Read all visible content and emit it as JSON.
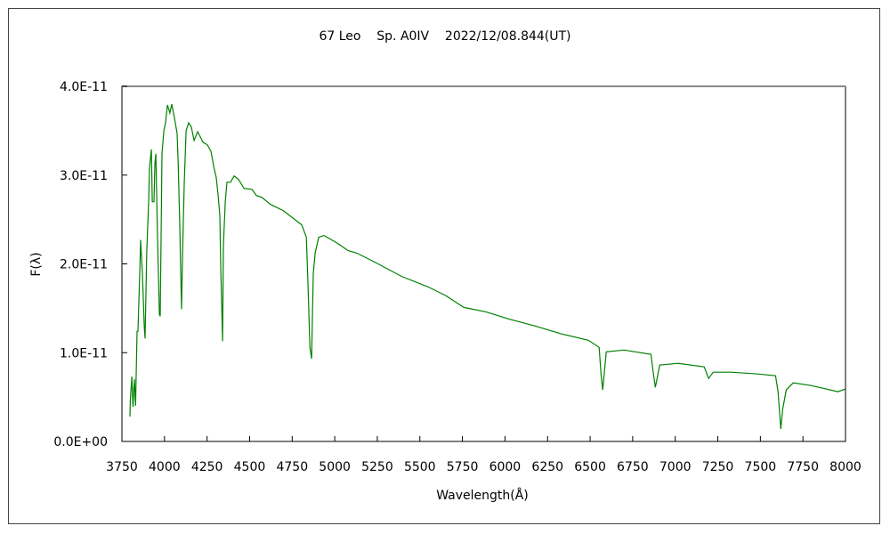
{
  "chart_data": {
    "type": "line",
    "title": "67 Leo    Sp. A0IV    2022/12/08.844(UT)",
    "xlabel": "Wavelength(Å)",
    "ylabel": "F(λ)",
    "xlim": [
      3750,
      8000
    ],
    "ylim": [
      0,
      4e-11
    ],
    "xticks": [
      "3750",
      "4000",
      "4250",
      "4500",
      "4750",
      "5000",
      "5250",
      "5500",
      "5750",
      "6000",
      "6250",
      "6500",
      "6750",
      "7000",
      "7250",
      "7500",
      "7750",
      "8000"
    ],
    "yticks": [
      "0.0E+00",
      "1.0E-11",
      "2.0E-11",
      "3.0E-11",
      "4.0E-11"
    ],
    "grid": false,
    "line_color": "#008000",
    "y_unit_scale": 1e-11,
    "series": [
      {
        "name": "67 Leo",
        "x": [
          3797,
          3799,
          3808,
          3815,
          3823,
          3830,
          3839,
          3844,
          3855,
          3860,
          3870,
          3881,
          3886,
          3896,
          3907,
          3912,
          3923,
          3928,
          3938,
          3944,
          3949,
          3959,
          3970,
          3975,
          3980,
          3985,
          3996,
          4006,
          4017,
          4032,
          4043,
          4059,
          4074,
          4080,
          4090,
          4095,
          4100,
          4106,
          4116,
          4127,
          4142,
          4158,
          4174,
          4195,
          4226,
          4252,
          4273,
          4289,
          4304,
          4315,
          4325,
          4331,
          4341,
          4346,
          4357,
          4367,
          4388,
          4409,
          4435,
          4467,
          4514,
          4540,
          4571,
          4623,
          4697,
          4765,
          4806,
          4833,
          4843,
          4854,
          4864,
          4874,
          4885,
          4906,
          4937,
          5010,
          5078,
          5131,
          5235,
          5392,
          5549,
          5654,
          5758,
          5889,
          6020,
          6177,
          6334,
          6490,
          6553,
          6564,
          6574,
          6595,
          6700,
          6857,
          6872,
          6883,
          6909,
          7014,
          7170,
          7196,
          7223,
          7327,
          7484,
          7589,
          7604,
          7620,
          7631,
          7652,
          7693,
          7798,
          7955,
          8000
        ],
        "y": [
          0.28,
          0.46,
          0.73,
          0.39,
          0.7,
          0.4,
          1.24,
          1.24,
          1.93,
          2.27,
          1.89,
          1.29,
          1.16,
          2.14,
          2.7,
          3.09,
          3.29,
          2.7,
          2.7,
          3.14,
          3.24,
          2.3,
          1.43,
          1.41,
          2.3,
          3.24,
          3.5,
          3.59,
          3.79,
          3.7,
          3.8,
          3.64,
          3.47,
          3.17,
          2.44,
          1.93,
          1.49,
          2.1,
          2.9,
          3.5,
          3.59,
          3.54,
          3.39,
          3.49,
          3.37,
          3.34,
          3.27,
          3.1,
          2.97,
          2.77,
          2.55,
          1.93,
          1.13,
          2.2,
          2.7,
          2.92,
          2.92,
          2.99,
          2.95,
          2.85,
          2.84,
          2.77,
          2.75,
          2.67,
          2.6,
          2.5,
          2.44,
          2.3,
          1.76,
          1.06,
          0.93,
          1.89,
          2.12,
          2.3,
          2.32,
          2.24,
          2.15,
          2.12,
          2.02,
          1.86,
          1.74,
          1.64,
          1.51,
          1.46,
          1.38,
          1.3,
          1.21,
          1.14,
          1.06,
          0.76,
          0.58,
          1.01,
          1.03,
          0.98,
          0.76,
          0.61,
          0.86,
          0.88,
          0.84,
          0.71,
          0.78,
          0.78,
          0.76,
          0.74,
          0.56,
          0.14,
          0.36,
          0.58,
          0.66,
          0.63,
          0.56,
          0.59
        ]
      }
    ]
  }
}
